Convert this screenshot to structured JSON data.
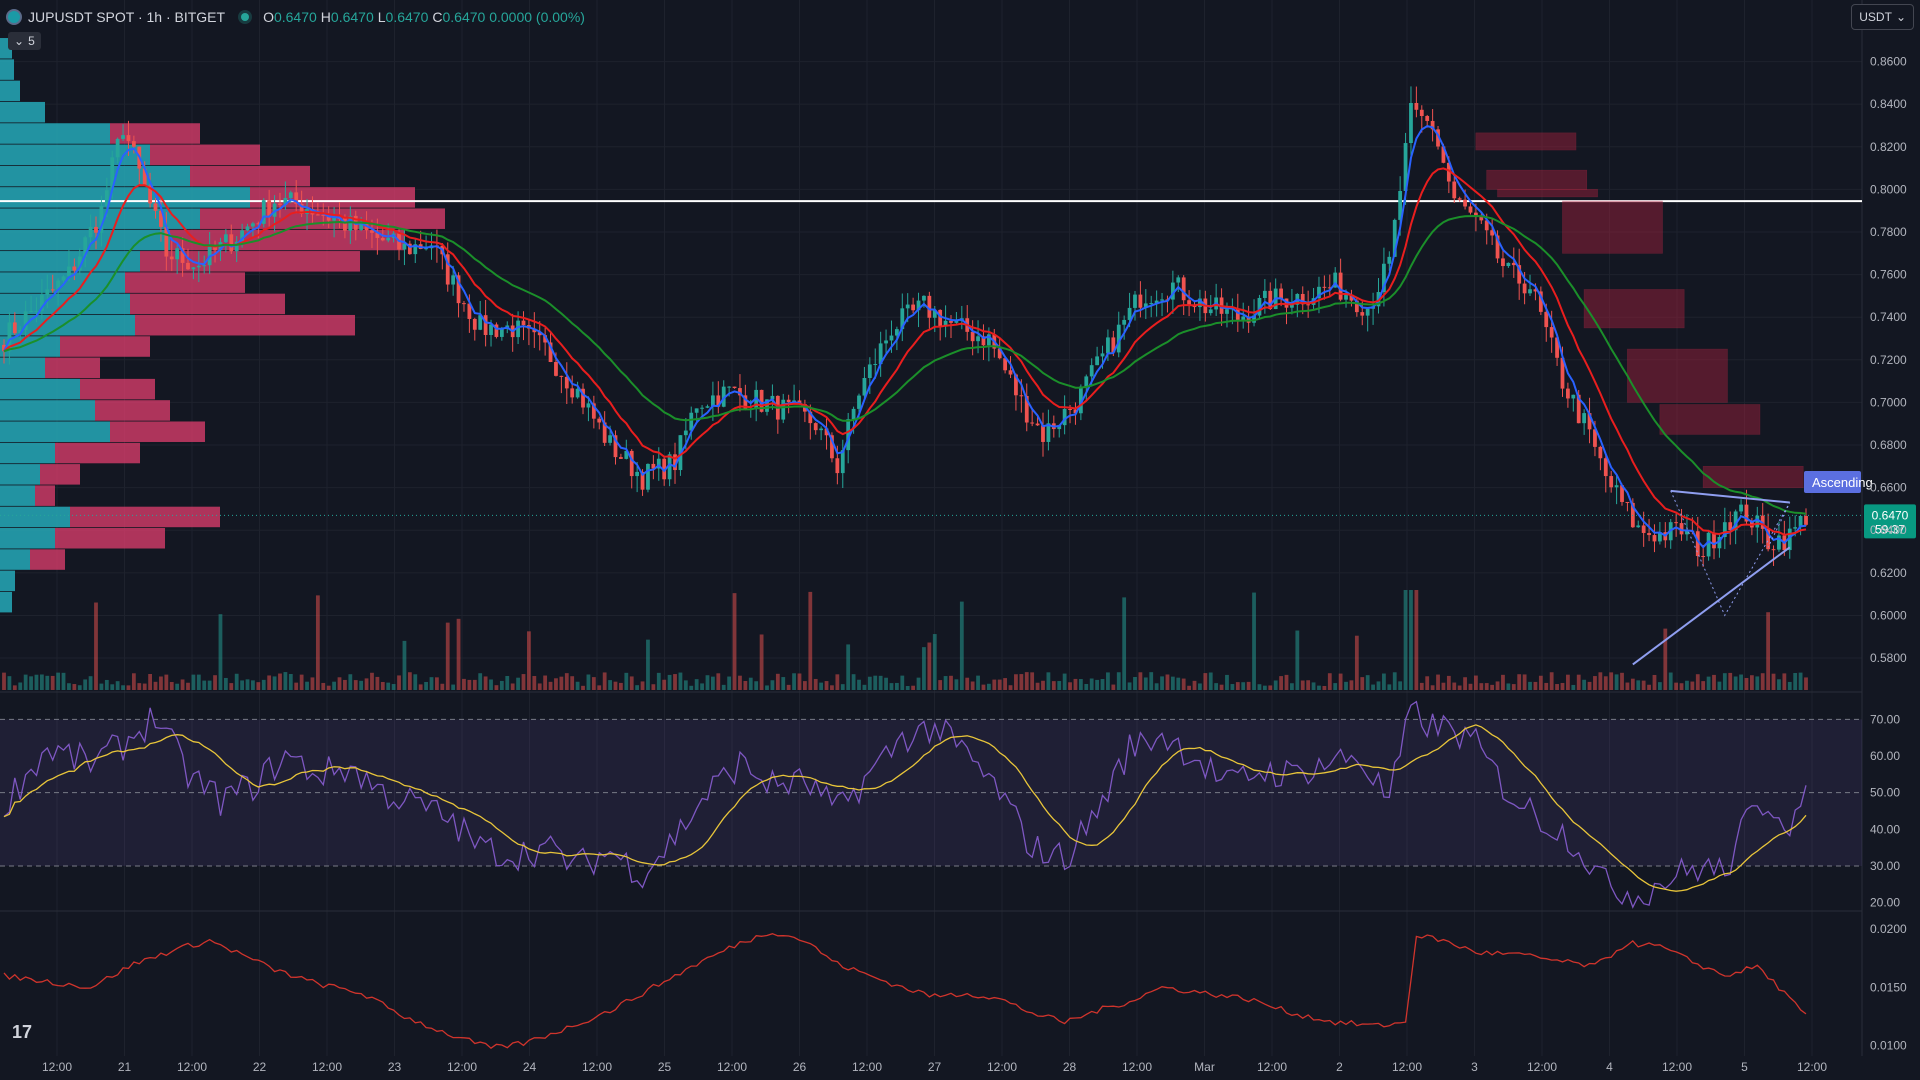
{
  "header": {
    "symbol": "JUPUSDT SPOT · 1h · BITGET",
    "o_label": "O",
    "o": "0.6470",
    "h_label": "H",
    "h": "0.6470",
    "l_label": "L",
    "l": "0.6470",
    "c_label": "C",
    "c": "0.6470 0.0000 (0.00%)"
  },
  "indicator_collapse": "5",
  "currency": "USDT",
  "branding": "17",
  "colors": {
    "bg": "#131722",
    "grid": "#1e222d",
    "up": "#26a69a",
    "down": "#ef5350",
    "ema_fast": "#2962ff",
    "ema_mid": "#e91e1e",
    "ema_slow": "#1b8f2a",
    "rsi": "#7e57c2",
    "rsi_ma": "#e8c53a",
    "atr": "#d0342c",
    "vp_up": "#26a9b8",
    "vp_down": "#d63c6a",
    "pattern": "#8f9ef0"
  },
  "chart_data": [
    {
      "type": "candlestick",
      "panel": "price",
      "ylim": [
        0.565,
        0.872
      ],
      "y_ticks": [
        "0.8600",
        "0.8400",
        "0.8200",
        "0.8000",
        "0.7800",
        "0.7600",
        "0.7400",
        "0.7200",
        "0.7000",
        "0.6800",
        "0.6600",
        "0.6400",
        "0.6200",
        "0.6000",
        "0.5800"
      ],
      "x_ticks": [
        "12:00",
        "21",
        "12:00",
        "22",
        "12:00",
        "23",
        "12:00",
        "24",
        "12:00",
        "25",
        "12:00",
        "26",
        "12:00",
        "27",
        "12:00",
        "28",
        "12:00",
        "Mar",
        "12:00",
        "2",
        "12:00",
        "3",
        "12:00",
        "4",
        "12:00",
        "5",
        "12:00"
      ],
      "anchors": [
        [
          0,
          0.73
        ],
        [
          6,
          0.745
        ],
        [
          12,
          0.76
        ],
        [
          18,
          0.79
        ],
        [
          22,
          0.83
        ],
        [
          26,
          0.8
        ],
        [
          30,
          0.77
        ],
        [
          36,
          0.765
        ],
        [
          44,
          0.78
        ],
        [
          50,
          0.795
        ],
        [
          56,
          0.792
        ],
        [
          62,
          0.785
        ],
        [
          68,
          0.778
        ],
        [
          74,
          0.772
        ],
        [
          79,
          0.775
        ],
        [
          82,
          0.76
        ],
        [
          88,
          0.735
        ],
        [
          94,
          0.735
        ],
        [
          100,
          0.725
        ],
        [
          106,
          0.705
        ],
        [
          112,
          0.68
        ],
        [
          118,
          0.665
        ],
        [
          124,
          0.672
        ],
        [
          128,
          0.7
        ],
        [
          134,
          0.705
        ],
        [
          140,
          0.7
        ],
        [
          146,
          0.695
        ],
        [
          150,
          0.69
        ],
        [
          154,
          0.67
        ],
        [
          158,
          0.705
        ],
        [
          164,
          0.735
        ],
        [
          170,
          0.745
        ],
        [
          176,
          0.735
        ],
        [
          182,
          0.73
        ],
        [
          188,
          0.7
        ],
        [
          192,
          0.685
        ],
        [
          198,
          0.7
        ],
        [
          204,
          0.725
        ],
        [
          210,
          0.75
        ],
        [
          216,
          0.755
        ],
        [
          222,
          0.745
        ],
        [
          228,
          0.74
        ],
        [
          234,
          0.748
        ],
        [
          240,
          0.75
        ],
        [
          246,
          0.755
        ],
        [
          252,
          0.745
        ],
        [
          256,
          0.765
        ],
        [
          260,
          0.835
        ],
        [
          264,
          0.83
        ],
        [
          268,
          0.795
        ],
        [
          272,
          0.785
        ],
        [
          278,
          0.76
        ],
        [
          282,
          0.755
        ],
        [
          288,
          0.71
        ],
        [
          292,
          0.69
        ],
        [
          296,
          0.665
        ],
        [
          302,
          0.64
        ],
        [
          306,
          0.638
        ],
        [
          310,
          0.64
        ],
        [
          314,
          0.63
        ],
        [
          318,
          0.645
        ],
        [
          322,
          0.648
        ],
        [
          326,
          0.635
        ],
        [
          330,
          0.637
        ],
        [
          333,
          0.647
        ]
      ],
      "emas": [
        {
          "name": "ema_fast",
          "period": 4
        },
        {
          "name": "ema_mid",
          "period": 12
        },
        {
          "name": "ema_slow",
          "period": 30
        }
      ],
      "volume_profile": [
        [
          0.866,
          12,
          0
        ],
        [
          0.856,
          14,
          0
        ],
        [
          0.846,
          20,
          0
        ],
        [
          0.836,
          45,
          0
        ],
        [
          0.826,
          110,
          90
        ],
        [
          0.816,
          150,
          110
        ],
        [
          0.806,
          190,
          120
        ],
        [
          0.796,
          250,
          165
        ],
        [
          0.786,
          200,
          245
        ],
        [
          0.776,
          170,
          235
        ],
        [
          0.766,
          140,
          220
        ],
        [
          0.756,
          125,
          120
        ],
        [
          0.746,
          130,
          155
        ],
        [
          0.736,
          135,
          220
        ],
        [
          0.726,
          60,
          90
        ],
        [
          0.716,
          45,
          55
        ],
        [
          0.706,
          80,
          75
        ],
        [
          0.696,
          95,
          75
        ],
        [
          0.686,
          110,
          95
        ],
        [
          0.676,
          55,
          85
        ],
        [
          0.666,
          40,
          40
        ],
        [
          0.656,
          35,
          20
        ],
        [
          0.646,
          70,
          150
        ],
        [
          0.636,
          55,
          110
        ],
        [
          0.626,
          30,
          35
        ],
        [
          0.616,
          15,
          0
        ],
        [
          0.606,
          12,
          0
        ]
      ],
      "poc_level": 0.7945,
      "last_price_level": 0.647,
      "last_price_label": "0.6470",
      "countdown_label": "59:37",
      "supply_zones": [
        [
          272,
          0.8185,
          0.8265
        ],
        [
          274,
          0.8,
          0.809
        ],
        [
          276,
          0.7965,
          0.8
        ],
        [
          288,
          0.77,
          0.7945
        ],
        [
          292,
          0.735,
          0.753
        ],
        [
          300,
          0.7,
          0.725
        ],
        [
          306,
          0.685,
          0.699
        ],
        [
          314,
          0.66,
          0.67
        ]
      ],
      "pattern": {
        "label": "Ascending",
        "upper": [
          [
            308,
            0.6585
          ],
          [
            330,
            0.653
          ]
        ],
        "lower": [
          [
            301,
            0.577
          ],
          [
            330,
            0.632
          ]
        ],
        "points": [
          [
            308,
            0.6585
          ],
          [
            318,
            0.6
          ],
          [
            330,
            0.653
          ],
          [
            326,
            0.632
          ]
        ]
      }
    },
    {
      "type": "line",
      "panel": "rsi",
      "ylim": [
        18,
        72
      ],
      "y_ticks": [
        "70.00",
        "60.00",
        "50.00",
        "40.00",
        "30.00",
        "20.00"
      ],
      "bands": [
        30,
        50,
        70
      ],
      "anchors": [
        [
          0,
          47
        ],
        [
          8,
          62
        ],
        [
          16,
          58
        ],
        [
          22,
          63
        ],
        [
          28,
          71
        ],
        [
          34,
          55
        ],
        [
          40,
          48
        ],
        [
          46,
          52
        ],
        [
          52,
          60
        ],
        [
          58,
          55
        ],
        [
          64,
          57
        ],
        [
          70,
          50
        ],
        [
          76,
          47
        ],
        [
          82,
          43
        ],
        [
          88,
          35
        ],
        [
          94,
          33
        ],
        [
          100,
          35
        ],
        [
          106,
          30
        ],
        [
          112,
          34
        ],
        [
          118,
          28
        ],
        [
          124,
          38
        ],
        [
          130,
          50
        ],
        [
          136,
          58
        ],
        [
          142,
          52
        ],
        [
          148,
          53
        ],
        [
          154,
          45
        ],
        [
          160,
          55
        ],
        [
          166,
          65
        ],
        [
          172,
          68
        ],
        [
          178,
          60
        ],
        [
          184,
          50
        ],
        [
          190,
          35
        ],
        [
          196,
          32
        ],
        [
          202,
          45
        ],
        [
          208,
          62
        ],
        [
          214,
          66
        ],
        [
          220,
          60
        ],
        [
          226,
          52
        ],
        [
          232,
          56
        ],
        [
          238,
          55
        ],
        [
          244,
          58
        ],
        [
          250,
          60
        ],
        [
          256,
          48
        ],
        [
          260,
          72
        ],
        [
          264,
          68
        ],
        [
          268,
          67
        ],
        [
          272,
          63
        ],
        [
          278,
          50
        ],
        [
          284,
          43
        ],
        [
          290,
          37
        ],
        [
          296,
          25
        ],
        [
          302,
          22
        ],
        [
          308,
          27
        ],
        [
          314,
          30
        ],
        [
          318,
          28
        ],
        [
          322,
          42
        ],
        [
          326,
          48
        ],
        [
          330,
          42
        ],
        [
          333,
          48
        ]
      ],
      "ma_period": 14
    },
    {
      "type": "line",
      "panel": "atr",
      "ylim": [
        0.0092,
        0.0212
      ],
      "y_ticks": [
        "0.0200",
        "0.0150",
        "0.0100"
      ],
      "anchors": [
        [
          0,
          0.016
        ],
        [
          8,
          0.0155
        ],
        [
          16,
          0.015
        ],
        [
          24,
          0.017
        ],
        [
          32,
          0.0183
        ],
        [
          38,
          0.019
        ],
        [
          44,
          0.0178
        ],
        [
          50,
          0.0165
        ],
        [
          58,
          0.0153
        ],
        [
          66,
          0.0145
        ],
        [
          74,
          0.0125
        ],
        [
          82,
          0.011
        ],
        [
          90,
          0.0098
        ],
        [
          96,
          0.0102
        ],
        [
          104,
          0.0115
        ],
        [
          112,
          0.013
        ],
        [
          120,
          0.015
        ],
        [
          128,
          0.017
        ],
        [
          136,
          0.0188
        ],
        [
          142,
          0.0198
        ],
        [
          148,
          0.019
        ],
        [
          154,
          0.017
        ],
        [
          160,
          0.016
        ],
        [
          166,
          0.015
        ],
        [
          172,
          0.0142
        ],
        [
          178,
          0.0145
        ],
        [
          184,
          0.014
        ],
        [
          190,
          0.0128
        ],
        [
          196,
          0.012
        ],
        [
          202,
          0.013
        ],
        [
          208,
          0.0138
        ],
        [
          214,
          0.015
        ],
        [
          222,
          0.0145
        ],
        [
          230,
          0.014
        ],
        [
          238,
          0.0128
        ],
        [
          246,
          0.012
        ],
        [
          254,
          0.0117
        ],
        [
          259,
          0.012
        ],
        [
          261,
          0.0195
        ],
        [
          266,
          0.019
        ],
        [
          272,
          0.018
        ],
        [
          280,
          0.0178
        ],
        [
          288,
          0.0172
        ],
        [
          294,
          0.0168
        ],
        [
          300,
          0.0188
        ],
        [
          306,
          0.0185
        ],
        [
          312,
          0.0172
        ],
        [
          318,
          0.016
        ],
        [
          324,
          0.0168
        ],
        [
          328,
          0.015
        ],
        [
          333,
          0.0125
        ]
      ]
    }
  ]
}
